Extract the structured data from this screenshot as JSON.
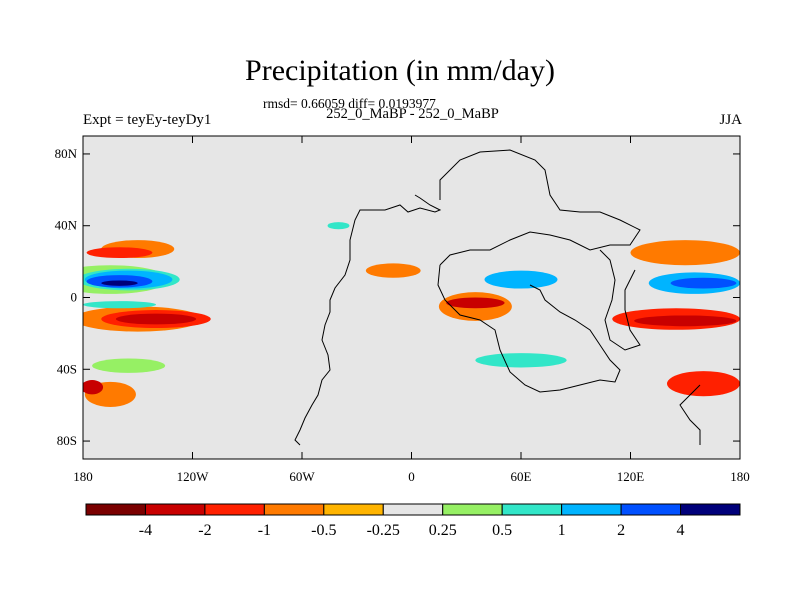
{
  "chart_data": {
    "type": "heatmap",
    "title": "Precipitation (in mm/day)",
    "stats_line": "rmsd= 0.66059 diff= 0.0193977",
    "subtitle": "252_0_MaBP - 252_0_MaBP",
    "experiment_label": "Expt = teyEy-teyDy1",
    "season_label": "JJA",
    "xlim": [
      -180,
      180
    ],
    "ylim": [
      -90,
      90
    ],
    "x_ticks": [
      {
        "value": -180,
        "label": "180"
      },
      {
        "value": -120,
        "label": "120W"
      },
      {
        "value": -60,
        "label": "60W"
      },
      {
        "value": 0,
        "label": "0"
      },
      {
        "value": 60,
        "label": "60E"
      },
      {
        "value": 120,
        "label": "120E"
      },
      {
        "value": 180,
        "label": "180"
      }
    ],
    "y_ticks": [
      {
        "value": 80,
        "label": "80N"
      },
      {
        "value": 40,
        "label": "40N"
      },
      {
        "value": 0,
        "label": "0"
      },
      {
        "value": -40,
        "label": "40S"
      },
      {
        "value": -80,
        "label": "80S"
      }
    ],
    "colorbar": {
      "colors": [
        "#7a0000",
        "#c80000",
        "#ff2000",
        "#ff7a00",
        "#ffb400",
        "#e6e6e6",
        "#96f064",
        "#32e6c8",
        "#00b4ff",
        "#0050ff",
        "#00007a"
      ],
      "levels": [
        "-4",
        "-2",
        "-1",
        "-0.5",
        "-0.25",
        "0.25",
        "0.5",
        "1",
        "2",
        "4"
      ]
    },
    "background_color": "#e6e6e6",
    "contour_patches": [
      {
        "level": 0.25,
        "lon": -165,
        "lat": 10,
        "dlon": 32,
        "dlat": 8
      },
      {
        "level": 0.5,
        "lon": -155,
        "lat": 10,
        "dlon": 28,
        "dlat": 6
      },
      {
        "level": 1,
        "lon": -155,
        "lat": 10,
        "dlon": 24,
        "dlat": 5
      },
      {
        "level": 2,
        "lon": -160,
        "lat": 9,
        "dlon": 18,
        "dlat": 3.5
      },
      {
        "level": 4,
        "lon": -160,
        "lat": 8,
        "dlon": 10,
        "dlat": 1.5
      },
      {
        "level": -0.5,
        "lon": -150,
        "lat": 27,
        "dlon": 20,
        "dlat": 5
      },
      {
        "level": -1,
        "lon": -160,
        "lat": 25,
        "dlon": 18,
        "dlat": 3
      },
      {
        "level": -0.5,
        "lon": -150,
        "lat": -12,
        "dlon": 35,
        "dlat": 7
      },
      {
        "level": -1,
        "lon": -140,
        "lat": -12,
        "dlon": 30,
        "dlat": 5
      },
      {
        "level": -2,
        "lon": -140,
        "lat": -12,
        "dlon": 22,
        "dlat": 3
      },
      {
        "level": 0.5,
        "lon": -160,
        "lat": -4,
        "dlon": 20,
        "dlat": 2
      },
      {
        "level": -0.5,
        "lon": -165,
        "lat": -54,
        "dlon": 14,
        "dlat": 7
      },
      {
        "level": -2,
        "lon": -175,
        "lat": -50,
        "dlon": 6,
        "dlat": 4
      },
      {
        "level": 0.25,
        "lon": -155,
        "lat": -38,
        "dlon": 20,
        "dlat": 4
      },
      {
        "level": -0.5,
        "lon": 35,
        "lat": -5,
        "dlon": 20,
        "dlat": 8
      },
      {
        "level": -2,
        "lon": 35,
        "lat": -3,
        "dlon": 16,
        "dlat": 3
      },
      {
        "level": 1,
        "lon": 60,
        "lat": 10,
        "dlon": 20,
        "dlat": 5
      },
      {
        "level": -1,
        "lon": 145,
        "lat": -12,
        "dlon": 35,
        "dlat": 6
      },
      {
        "level": -2,
        "lon": 150,
        "lat": -13,
        "dlon": 28,
        "dlat": 3
      },
      {
        "level": -0.5,
        "lon": 150,
        "lat": 25,
        "dlon": 30,
        "dlat": 7
      },
      {
        "level": 1,
        "lon": 155,
        "lat": 8,
        "dlon": 25,
        "dlat": 6
      },
      {
        "level": 2,
        "lon": 160,
        "lat": 8,
        "dlon": 18,
        "dlat": 3
      },
      {
        "level": -1,
        "lon": 160,
        "lat": -48,
        "dlon": 20,
        "dlat": 7
      },
      {
        "level": 0.5,
        "lon": 60,
        "lat": -35,
        "dlon": 25,
        "dlat": 4
      },
      {
        "level": 0.5,
        "lon": -40,
        "lat": 40,
        "dlon": 6,
        "dlat": 2
      },
      {
        "level": -0.5,
        "lon": -10,
        "lat": 15,
        "dlon": 15,
        "dlat": 4
      }
    ]
  }
}
